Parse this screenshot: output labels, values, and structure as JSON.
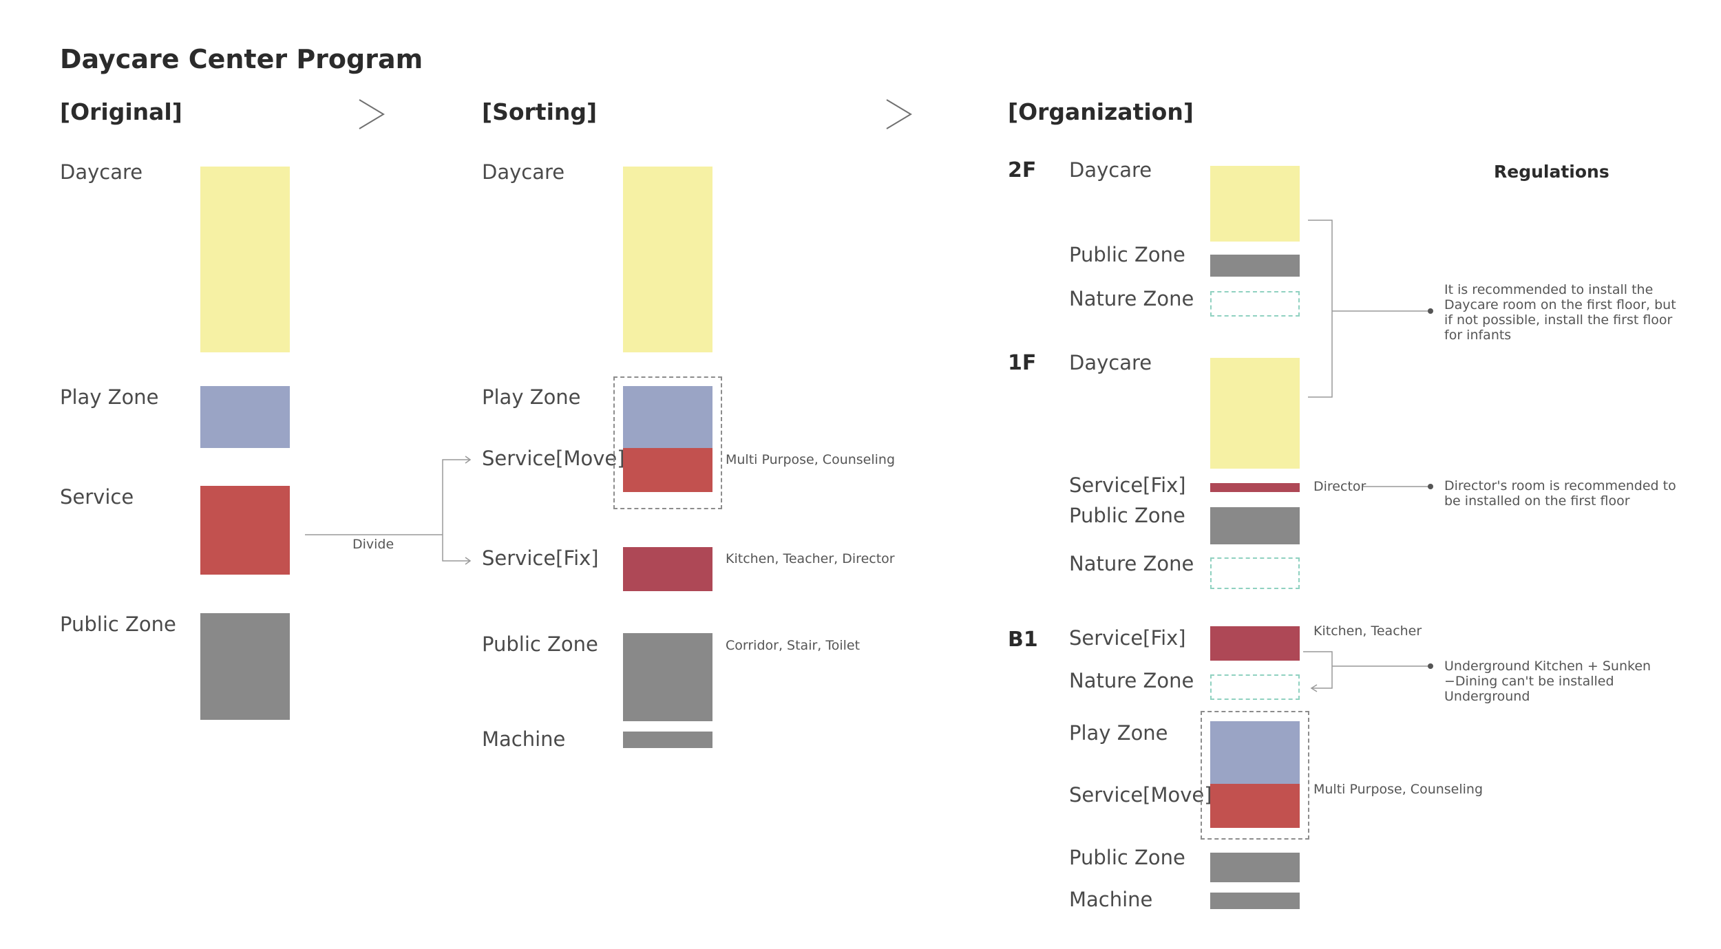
{
  "title": "Daycare Center Program",
  "colors": {
    "daycare": "#f6f1a4",
    "play_zone": "#9aa4c5",
    "service_move": "#c2514f",
    "service_fix": "#ae4856",
    "public_zone": "#898989",
    "nature_zone_outline": "#8fd1c0"
  },
  "original": {
    "heading": "[Original]",
    "labels": [
      "Daycare",
      "Play Zone",
      "Service",
      "Public Zone"
    ],
    "divide": "Divide"
  },
  "sorting": {
    "heading": "[Sorting]",
    "labels": [
      "Daycare",
      "Play Zone",
      "Service[Move]",
      "Service[Fix]",
      "Public Zone",
      "Machine"
    ],
    "notes": [
      "Multi Purpose, Counseling",
      "Kitchen, Teacher, Director",
      "Corridor, Stair, Toilet"
    ]
  },
  "organization": {
    "heading": "[Organization]",
    "floors": [
      "2F",
      "1F",
      "B1"
    ],
    "floor_2f": [
      "Daycare",
      "Public Zone",
      "Nature Zone"
    ],
    "floor_1f": [
      "Daycare",
      "Service[Fix]",
      "Public Zone",
      "Nature Zone"
    ],
    "floor_b1": [
      "Service[Fix]",
      "Nature Zone",
      "Play Zone",
      "Service[Move]",
      "Public Zone",
      "Machine"
    ],
    "box_notes": [
      "Director",
      "Kitchen, Teacher",
      "Multi Purpose, Counseling"
    ]
  },
  "regulations": {
    "heading": "Regulations",
    "items": [
      "It is recommended to install the Daycare room on the first floor, but if not possible, install the first floor for infants",
      "Director's room is recommended to be installed on the first floor",
      "Underground Kitchen + Sunken −Dining can't be installed Underground"
    ]
  }
}
